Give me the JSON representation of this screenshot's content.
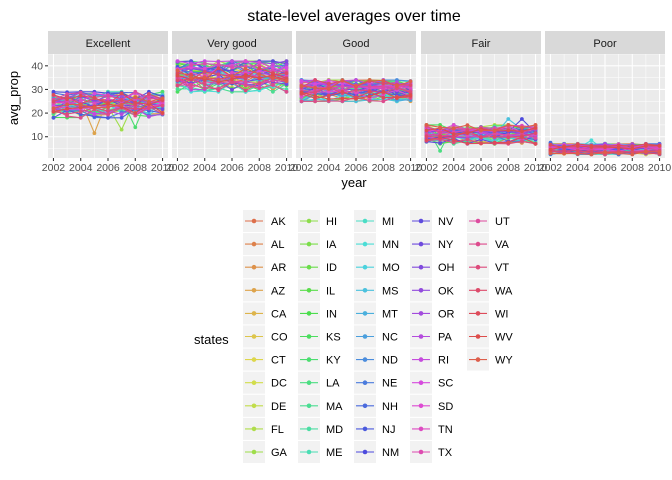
{
  "chart_data": {
    "type": "line",
    "title": "state-level averages over time",
    "xlabel": "year",
    "ylabel": "avg_prop",
    "facets": [
      "Excellent",
      "Very good",
      "Good",
      "Fair",
      "Poor"
    ],
    "x": [
      2002,
      2003,
      2004,
      2005,
      2006,
      2007,
      2008,
      2009,
      2010
    ],
    "x_ticks": [
      2002,
      2004,
      2006,
      2008,
      2010
    ],
    "x_tick_labels": [
      "2002",
      "2004",
      "2006",
      "2008",
      "2010"
    ],
    "ylim": [
      1,
      45
    ],
    "y_ticks": [
      10,
      20,
      30,
      40
    ],
    "y_tick_labels": [
      "10",
      "20",
      "30",
      "40"
    ],
    "facet_ranges": {
      "Excellent": [
        18,
        29
      ],
      "Very good": [
        29,
        42
      ],
      "Good": [
        25,
        34
      ],
      "Fair": [
        7,
        15
      ],
      "Poor": [
        2.5,
        7
      ]
    },
    "outliers": [
      {
        "facet": "Excellent",
        "x": 2005,
        "y": 11.5
      },
      {
        "facet": "Excellent",
        "x": 2007,
        "y": 13
      },
      {
        "facet": "Excellent",
        "x": 2008,
        "y": 14
      },
      {
        "facet": "Fair",
        "x": 2003,
        "y": 4
      },
      {
        "facet": "Fair",
        "x": 2008,
        "y": 17.5
      },
      {
        "facet": "Fair",
        "x": 2009,
        "y": 17.5
      },
      {
        "facet": "Poor",
        "x": 2005,
        "y": 8.5
      },
      {
        "facet": "Poor",
        "x": 2002,
        "y": 7.5
      }
    ],
    "legend": {
      "title": "states",
      "position": "bottom",
      "columns": 5,
      "entries": [
        "AK",
        "AL",
        "AR",
        "AZ",
        "CA",
        "CO",
        "CT",
        "DC",
        "DE",
        "FL",
        "GA",
        "HI",
        "IA",
        "ID",
        "IL",
        "IN",
        "KS",
        "KY",
        "LA",
        "MA",
        "MD",
        "ME",
        "MI",
        "MN",
        "MO",
        "MS",
        "MT",
        "NC",
        "ND",
        "NE",
        "NH",
        "NJ",
        "NM",
        "NV",
        "NY",
        "OH",
        "OK",
        "OR",
        "PA",
        "RI",
        "SC",
        "SD",
        "TN",
        "TX",
        "UT",
        "VA",
        "VT",
        "WA",
        "WI",
        "WV",
        "WY"
      ]
    },
    "grid": true
  }
}
